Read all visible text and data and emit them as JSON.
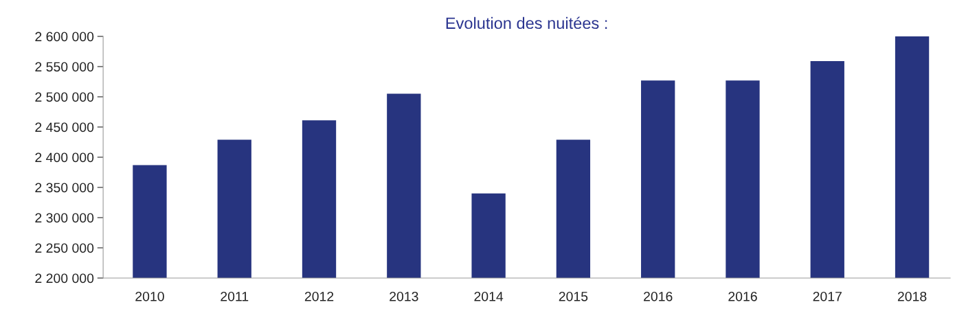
{
  "chart_data": {
    "type": "bar",
    "title": "Evolution des nuitées :",
    "categories": [
      "2010",
      "2011",
      "2012",
      "2013",
      "2014",
      "2015",
      "2016",
      "2016",
      "2017",
      "2018"
    ],
    "values": [
      2387000,
      2429000,
      2461000,
      2505000,
      2340000,
      2429000,
      2527000,
      2527000,
      2559000,
      2600000
    ],
    "color": "#27347f",
    "ylim": [
      2200000,
      2600000
    ],
    "yticks": [
      {
        "value": 2200000,
        "label": "2 200 000"
      },
      {
        "value": 2250000,
        "label": "2 250 000"
      },
      {
        "value": 2300000,
        "label": "2 300 000"
      },
      {
        "value": 2350000,
        "label": "2 350 000"
      },
      {
        "value": 2400000,
        "label": "2 400 000"
      },
      {
        "value": 2450000,
        "label": "2 450 000"
      },
      {
        "value": 2500000,
        "label": "2 500 000"
      },
      {
        "value": 2550000,
        "label": "2 550 000"
      },
      {
        "value": 2600000,
        "label": "2 600 000"
      }
    ],
    "grid": false,
    "legend": false
  }
}
